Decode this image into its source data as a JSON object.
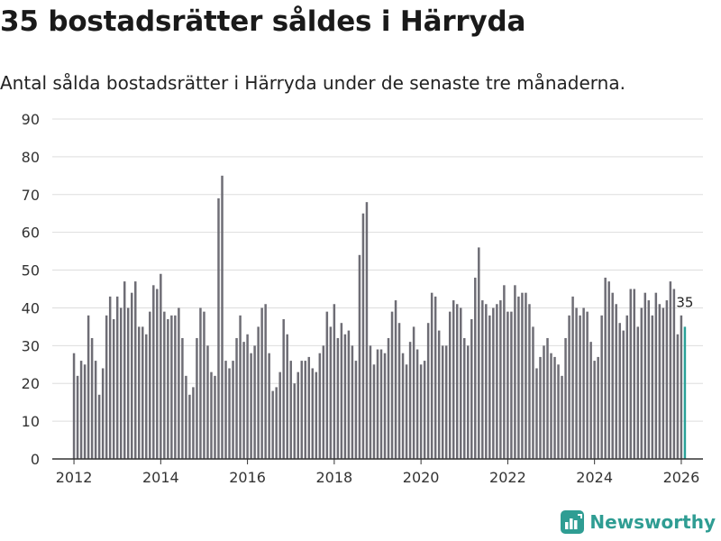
{
  "header": {
    "title": "35 bostadsrätter såldes i Härryda",
    "subtitle": "Antal sålda bostadsrätter i Härryda under de senaste tre månaderna."
  },
  "brand": {
    "name": "Newsworthy",
    "color": "#2f9d93"
  },
  "colors": {
    "bar": "#6e6d75",
    "highlight": "#2aa198",
    "grid": "#dddddd",
    "axis": "#333333"
  },
  "chart_data": {
    "type": "bar",
    "title": "35 bostadsrätter såldes i Härryda",
    "xlabel": "",
    "ylabel": "",
    "ylim": [
      0,
      90
    ],
    "yticks": [
      0,
      10,
      20,
      30,
      40,
      50,
      60,
      70,
      80,
      90
    ],
    "xlim": [
      2011.5,
      2026.5
    ],
    "xticks": [
      "2012",
      "2014",
      "2016",
      "2018",
      "2020",
      "2022",
      "2024",
      "2026"
    ],
    "x_start": 2012.0,
    "x_step": 0.08333,
    "values": [
      28,
      22,
      26,
      25,
      38,
      32,
      26,
      17,
      24,
      38,
      43,
      37,
      43,
      40,
      47,
      40,
      44,
      47,
      35,
      35,
      33,
      39,
      46,
      45,
      49,
      39,
      37,
      38,
      38,
      40,
      32,
      22,
      17,
      19,
      32,
      40,
      39,
      30,
      23,
      22,
      69,
      75,
      26,
      24,
      26,
      32,
      38,
      31,
      33,
      28,
      30,
      35,
      40,
      41,
      28,
      18,
      19,
      23,
      37,
      33,
      26,
      20,
      23,
      26,
      26,
      27,
      24,
      23,
      28,
      30,
      39,
      35,
      41,
      32,
      36,
      33,
      34,
      30,
      26,
      54,
      65,
      68,
      30,
      25,
      29,
      29,
      28,
      32,
      39,
      42,
      36,
      28,
      25,
      31,
      35,
      29,
      25,
      26,
      36,
      44,
      43,
      34,
      30,
      30,
      39,
      42,
      41,
      40,
      32,
      30,
      37,
      48,
      56,
      42,
      41,
      38,
      40,
      41,
      42,
      46,
      39,
      39,
      46,
      43,
      44,
      44,
      41,
      35,
      24,
      27,
      30,
      32,
      28,
      27,
      25,
      22,
      32,
      38,
      43,
      40,
      38,
      40,
      39,
      31,
      26,
      27,
      38,
      48,
      47,
      44,
      41,
      36,
      34,
      38,
      45,
      45,
      35,
      40,
      44,
      42,
      38,
      44,
      41,
      40,
      42,
      47,
      45,
      33,
      38,
      35
    ],
    "highlight_index": 169,
    "highlight_label": "35"
  }
}
